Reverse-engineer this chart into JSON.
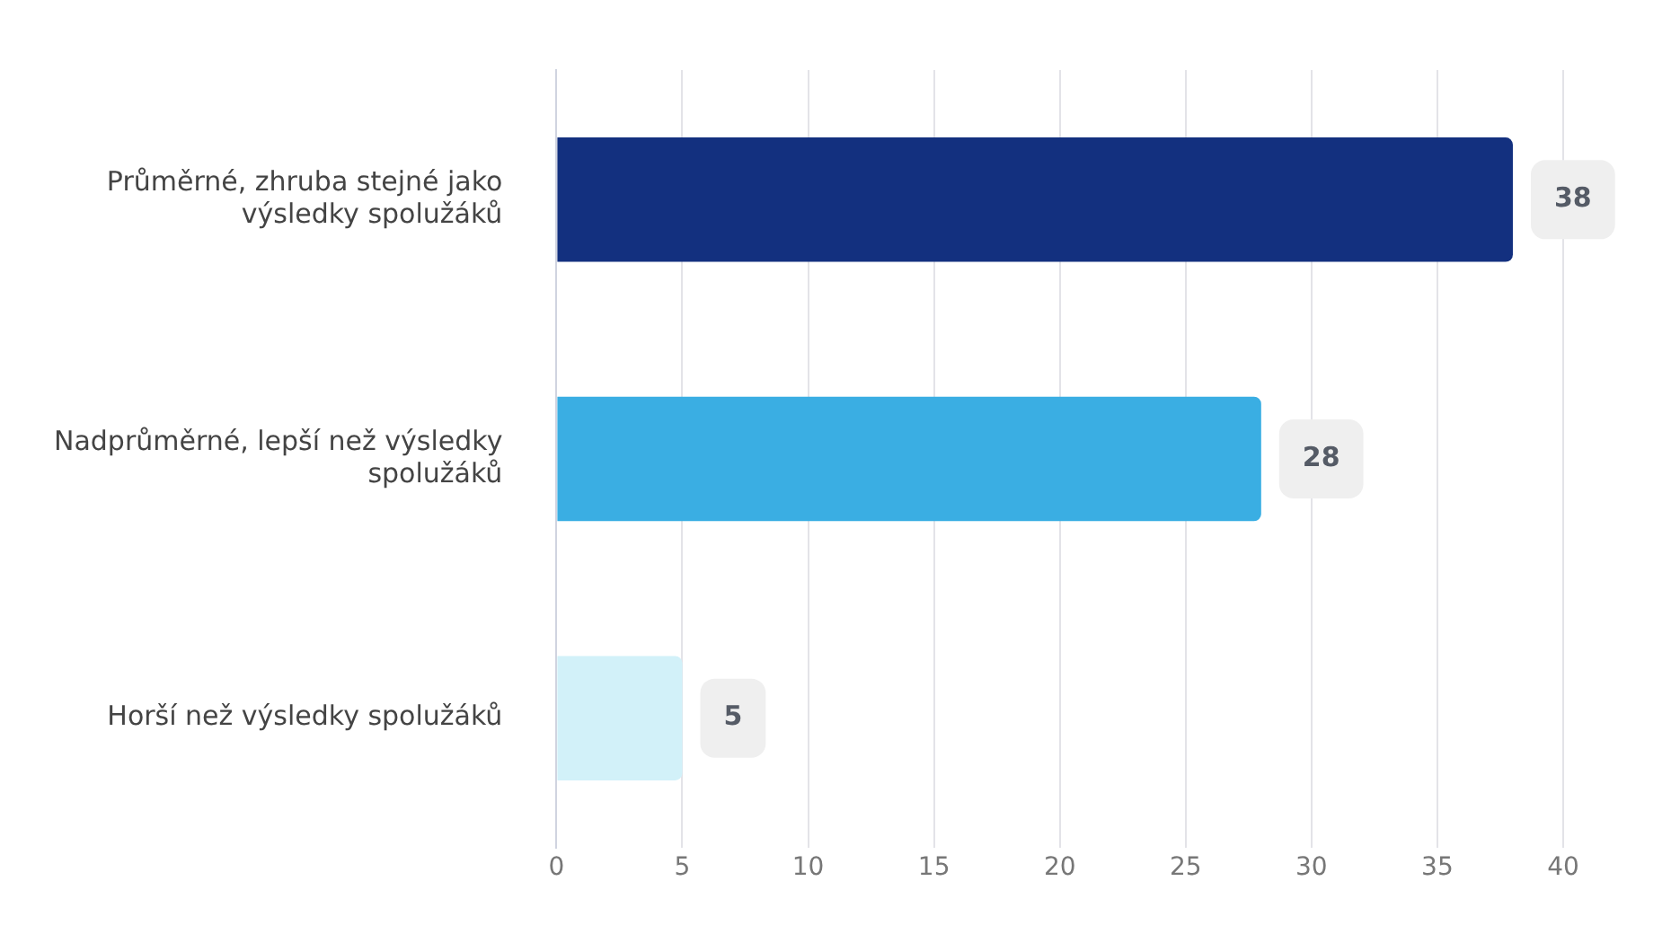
{
  "chart_data": {
    "type": "bar",
    "orientation": "horizontal",
    "categories": [
      "Průměrné, zhruba stejné jako výsledky spolužáků",
      "Nadprůměrné, lepší než výsledky spolužáků",
      "Horší než výsledky spolužáků"
    ],
    "values": [
      38,
      28,
      5
    ],
    "colors": [
      "#13307f",
      "#3aaee3",
      "#d2f1f9"
    ],
    "xlim": [
      0,
      40
    ],
    "xticks": [
      0,
      5,
      10,
      15,
      20,
      25,
      30,
      35,
      40
    ],
    "grid": "x",
    "legend": false,
    "data_labels": true
  }
}
